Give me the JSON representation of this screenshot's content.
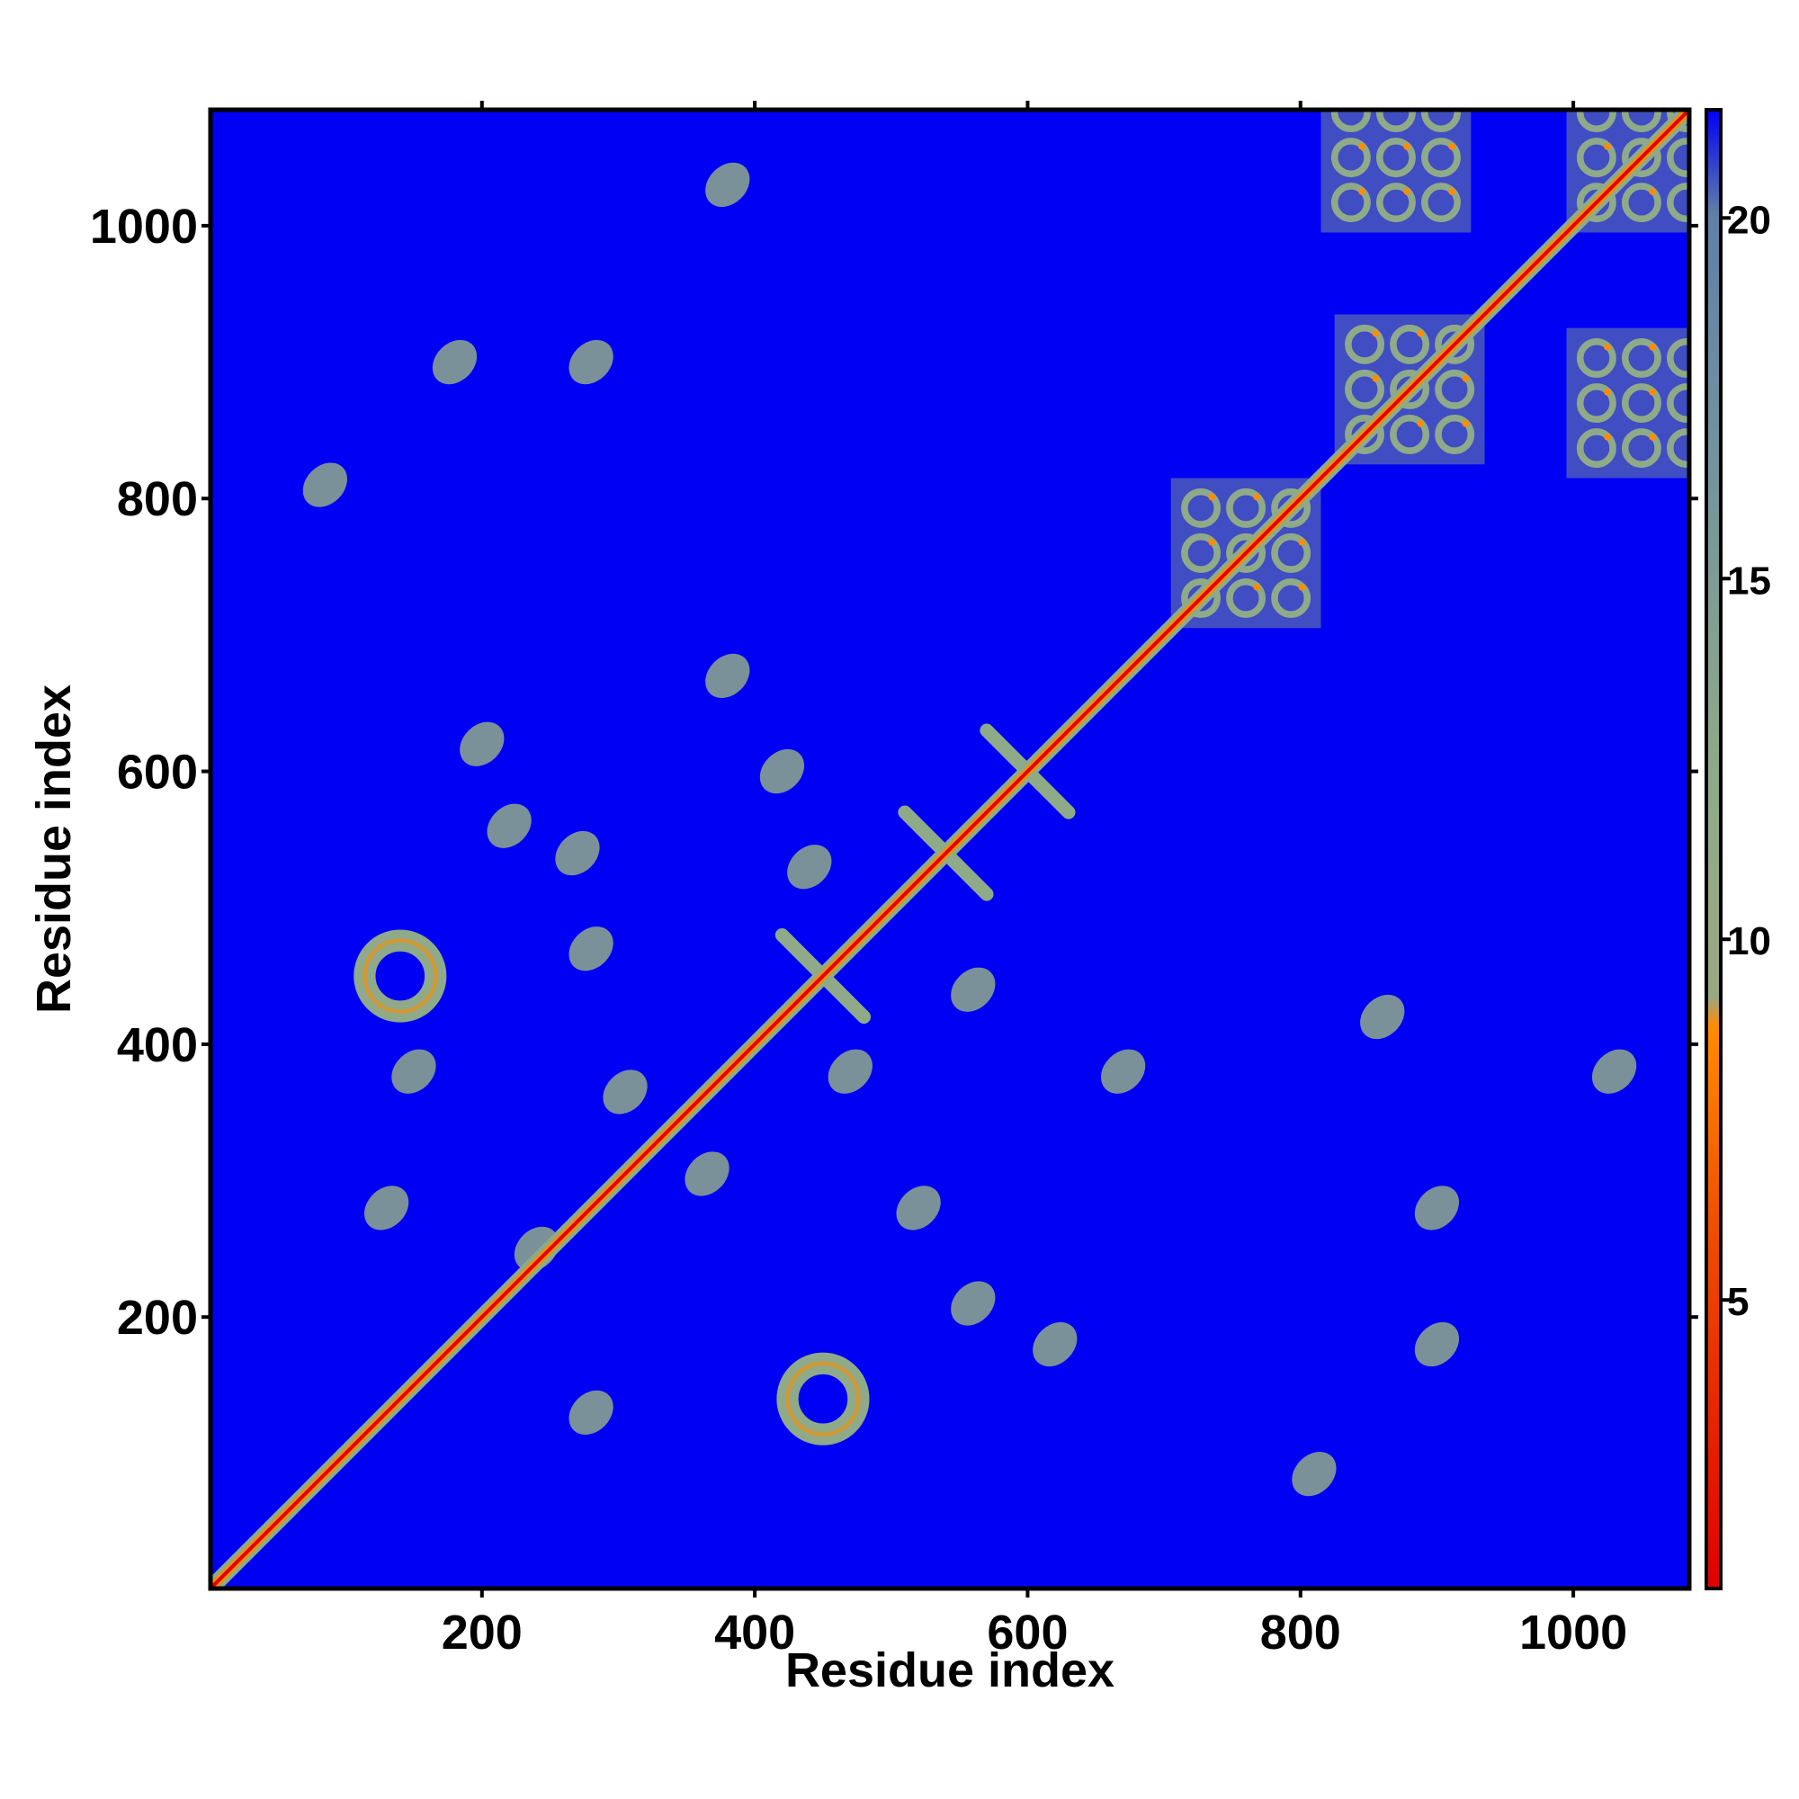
{
  "chart_data": {
    "type": "heatmap",
    "title": "",
    "xlabel": "Residue index",
    "ylabel": "Residue index",
    "xlim": [
      1,
      1085
    ],
    "ylim": [
      1,
      1085
    ],
    "x_ticks": [
      200,
      400,
      600,
      800,
      1000
    ],
    "y_ticks": [
      200,
      400,
      600,
      800,
      1000
    ],
    "colorbar": {
      "range": [
        1,
        21.5
      ],
      "ticks": [
        5,
        10,
        15,
        20
      ],
      "colors": {
        "min": "#e00000",
        "low": "#ff8c00",
        "mid": "#8faa88",
        "high": "#5f7fa7",
        "background": "#0000f5"
      }
    },
    "description_values": {
      "diagonal": "self-contact band",
      "background_value": 21.5
    },
    "contact_clusters": [
      {
        "x": 140,
        "y": 450,
        "kind": "ring"
      },
      {
        "x": 450,
        "y": 140,
        "kind": "ring"
      },
      {
        "x": 200,
        "y": 620,
        "kind": "blob"
      },
      {
        "x": 220,
        "y": 560,
        "kind": "blob"
      },
      {
        "x": 270,
        "y": 540,
        "kind": "blob"
      },
      {
        "x": 280,
        "y": 470,
        "kind": "blob"
      },
      {
        "x": 150,
        "y": 380,
        "kind": "blob"
      },
      {
        "x": 420,
        "y": 600,
        "kind": "blob"
      },
      {
        "x": 440,
        "y": 530,
        "kind": "blob"
      },
      {
        "x": 470,
        "y": 380,
        "kind": "blob"
      },
      {
        "x": 560,
        "y": 440,
        "kind": "blob"
      },
      {
        "x": 540,
        "y": 540,
        "kind": "cross"
      },
      {
        "x": 600,
        "y": 600,
        "kind": "cross"
      },
      {
        "x": 450,
        "y": 450,
        "kind": "cross"
      },
      {
        "x": 130,
        "y": 280,
        "kind": "blob"
      },
      {
        "x": 240,
        "y": 250,
        "kind": "blob"
      },
      {
        "x": 280,
        "y": 130,
        "kind": "blob"
      },
      {
        "x": 520,
        "y": 280,
        "kind": "blob"
      },
      {
        "x": 560,
        "y": 210,
        "kind": "blob"
      },
      {
        "x": 620,
        "y": 180,
        "kind": "blob"
      },
      {
        "x": 760,
        "y": 760,
        "kind": "grid"
      },
      {
        "x": 880,
        "y": 880,
        "kind": "grid"
      },
      {
        "x": 870,
        "y": 1050,
        "kind": "grid"
      },
      {
        "x": 1050,
        "y": 870,
        "kind": "grid"
      },
      {
        "x": 1050,
        "y": 1050,
        "kind": "grid"
      },
      {
        "x": 670,
        "y": 380,
        "kind": "blob"
      },
      {
        "x": 380,
        "y": 670,
        "kind": "blob"
      },
      {
        "x": 900,
        "y": 180,
        "kind": "blob"
      },
      {
        "x": 900,
        "y": 280,
        "kind": "blob"
      },
      {
        "x": 860,
        "y": 420,
        "kind": "blob"
      },
      {
        "x": 1030,
        "y": 380,
        "kind": "blob"
      },
      {
        "x": 380,
        "y": 1030,
        "kind": "blob"
      },
      {
        "x": 180,
        "y": 900,
        "kind": "blob"
      },
      {
        "x": 280,
        "y": 900,
        "kind": "blob"
      },
      {
        "x": 85,
        "y": 810,
        "kind": "blob"
      },
      {
        "x": 810,
        "y": 85,
        "kind": "blob"
      },
      {
        "x": 365,
        "y": 305,
        "kind": "blob"
      },
      {
        "x": 305,
        "y": 365,
        "kind": "blob"
      }
    ]
  }
}
